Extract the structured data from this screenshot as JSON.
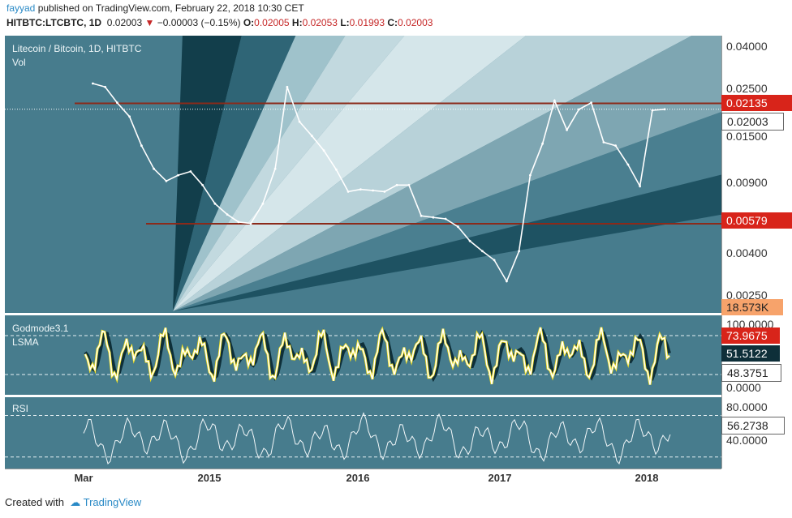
{
  "header": {
    "author": "fayyad",
    "published": "published on TradingView.com, February 22, 2018 10:30 CET",
    "symbol_line": "HITBTC:LTCBTC, 1D",
    "last": "0.02003",
    "change": "−0.00003 (−0.15%)",
    "open_label": "O:",
    "open": "0.02005",
    "high_label": "H:",
    "high": "0.02053",
    "low_label": "L:",
    "low": "0.01993",
    "close_label": "C:",
    "close": "0.02003"
  },
  "panel1": {
    "title": "Litecoin / Bitcoin, 1D, HITBTC",
    "vol_label": "Vol"
  },
  "panel2": {
    "title": "Godmode3.1",
    "subtitle": "LSMA"
  },
  "panel3": {
    "title": "RSI"
  },
  "footer": {
    "created_with": "Created with",
    "brand": "TradingView"
  },
  "colors": {
    "panel_bg": "#477c8d",
    "resistance_line": "#8b2a1a",
    "tag_red": "#d8241a",
    "tag_orange": "#f7a36b",
    "price_line": "#ffffff",
    "godmode_yellow": "#f4e11a",
    "godmode_dark": "#0e2f39"
  },
  "chart_data": [
    {
      "type": "line",
      "name": "price",
      "scale": "log",
      "y_ticks": [
        "0.04000",
        "0.02500",
        "0.01500",
        "0.00900",
        "0.00400",
        "0.00250"
      ],
      "ylim": [
        0.0022,
        0.0445
      ],
      "x_ticks": [
        "Mar",
        "2015",
        "2016",
        "2017",
        "2018"
      ],
      "x": [
        "2014-03",
        "2014-04",
        "2014-05",
        "2014-06",
        "2014-07",
        "2014-08",
        "2014-09",
        "2014-10",
        "2014-11",
        "2014-12",
        "2015-01",
        "2015-02",
        "2015-03",
        "2015-04",
        "2015-05",
        "2015-06",
        "2015-07",
        "2015-08",
        "2015-09",
        "2015-10",
        "2015-11",
        "2015-12",
        "2016-01",
        "2016-02",
        "2016-03",
        "2016-04",
        "2016-05",
        "2016-06",
        "2016-07",
        "2016-08",
        "2016-09",
        "2016-10",
        "2016-11",
        "2016-12",
        "2017-01",
        "2017-02",
        "2017-03",
        "2017-04",
        "2017-05",
        "2017-06",
        "2017-07",
        "2017-08",
        "2017-09",
        "2017-10",
        "2017-11",
        "2017-12",
        "2018-01",
        "2018-02"
      ],
      "values": [
        0.0265,
        0.0255,
        0.0215,
        0.0185,
        0.0135,
        0.0105,
        0.0092,
        0.0098,
        0.0102,
        0.0088,
        0.0072,
        0.0064,
        0.0059,
        0.0058,
        0.0072,
        0.0105,
        0.0255,
        0.0175,
        0.015,
        0.0128,
        0.0104,
        0.0082,
        0.0084,
        0.0083,
        0.0082,
        0.0088,
        0.0088,
        0.0063,
        0.0062,
        0.0061,
        0.0056,
        0.0048,
        0.0043,
        0.0039,
        0.0031,
        0.0043,
        0.0098,
        0.0138,
        0.022,
        0.016,
        0.02,
        0.0215,
        0.014,
        0.0135,
        0.011,
        0.0087,
        0.0198,
        0.02003
      ],
      "horizontal_lines": [
        0.02135,
        0.00579
      ],
      "price_labels": [
        "0.02135",
        "0.02003",
        "0.00579"
      ],
      "volume_label": "18.573K"
    },
    {
      "type": "line",
      "name": "Godmode3.1",
      "y_ticks": [
        "100.0000",
        "0.0000"
      ],
      "ylim": [
        0,
        100
      ],
      "guides": [
        80,
        20
      ],
      "value_labels": [
        "73.9675",
        "51.5122",
        "48.3751"
      ]
    },
    {
      "type": "line",
      "name": "RSI",
      "y_ticks": [
        "80.0000",
        "40.0000"
      ],
      "ylim": [
        20,
        100
      ],
      "guides": [
        80,
        30
      ],
      "value_labels": [
        "56.2738"
      ]
    }
  ]
}
